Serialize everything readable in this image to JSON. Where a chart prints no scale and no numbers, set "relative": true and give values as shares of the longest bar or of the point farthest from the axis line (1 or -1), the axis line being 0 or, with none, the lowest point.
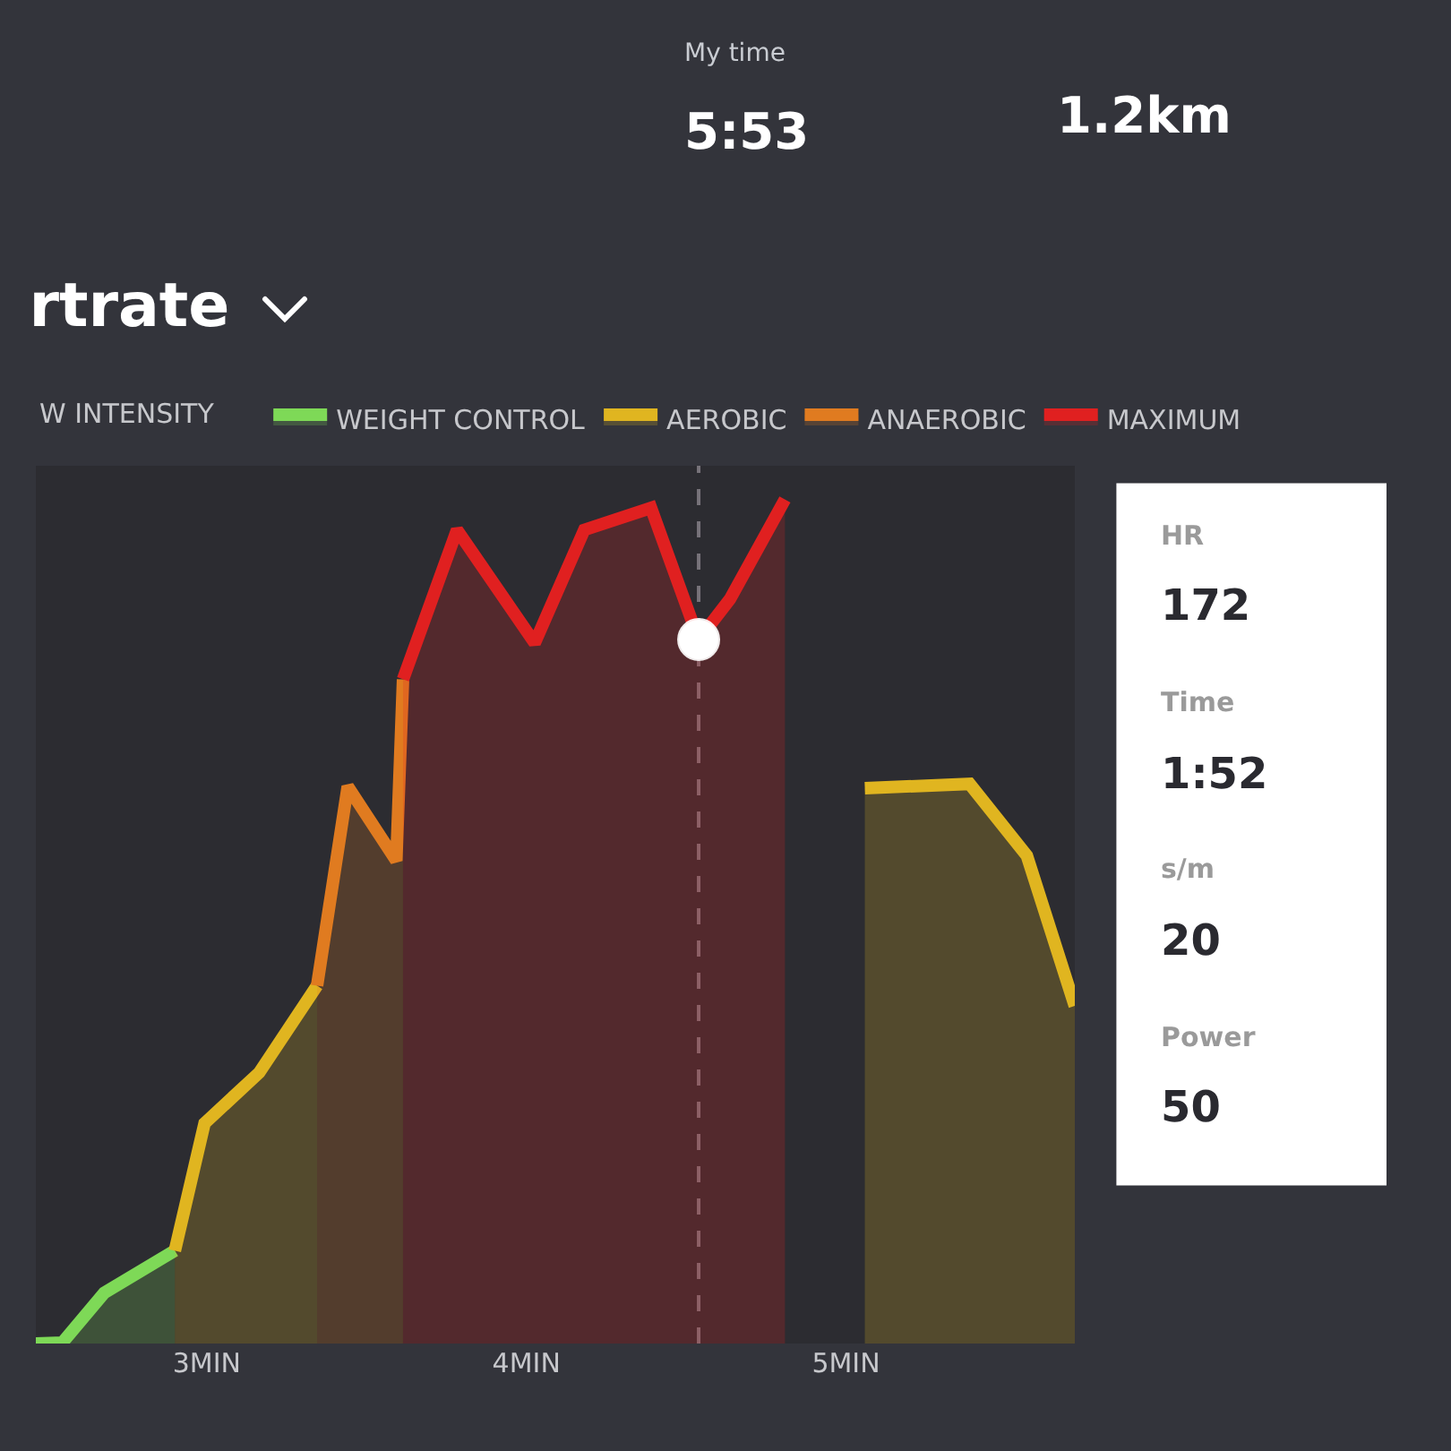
{
  "chart_data": {
    "type": "area",
    "title": "rtrate",
    "relative": true,
    "x": [
      2.465,
      2.548,
      2.679,
      2.9,
      2.993,
      3.164,
      3.345,
      3.441,
      3.593,
      3.614,
      3.783,
      4.026,
      4.181,
      4.39,
      4.539,
      4.637,
      4.809,
      5.059,
      5.387,
      5.566,
      5.716
    ],
    "series": [
      {
        "name": "WEIGHT CONTROL",
        "color": "#7ed957",
        "values": [
          0,
          0.001,
          0.06,
          0.11,
          null,
          null,
          null,
          null,
          null,
          null,
          null,
          null,
          null,
          null,
          null,
          null,
          null,
          null,
          null,
          null,
          null
        ]
      },
      {
        "name": "AEROBIC",
        "color": "#e0b520",
        "values": [
          null,
          null,
          null,
          0.11,
          0.261,
          0.321,
          0.424,
          null,
          null,
          null,
          null,
          null,
          null,
          null,
          null,
          null,
          null,
          null,
          null,
          null,
          null
        ]
      },
      {
        "color": "#e0b520",
        "values": [
          null,
          null,
          null,
          null,
          null,
          null,
          null,
          null,
          null,
          null,
          null,
          null,
          null,
          null,
          null,
          null,
          null,
          0.658,
          0.663,
          0.578,
          0.4
        ]
      },
      {
        "name": "ANAEROBIC",
        "color": "#e07b20",
        "values": [
          null,
          null,
          null,
          null,
          null,
          null,
          0.424,
          0.66,
          0.572,
          0.787,
          null,
          null,
          null,
          null,
          null,
          null,
          null,
          null,
          null,
          null,
          null
        ]
      },
      {
        "name": "MAXIMUM",
        "color": "#e02020",
        "values": [
          null,
          null,
          null,
          null,
          null,
          null,
          null,
          null,
          null,
          0.787,
          0.964,
          0.83,
          0.964,
          0.99,
          0.834,
          0.882,
          1,
          null,
          null,
          null,
          null
        ]
      },
      {
        "type": "scatter",
        "color": "#ffffff",
        "marker": "circle",
        "x": [
          4.539
        ],
        "values": [
          0.834
        ]
      }
    ],
    "xlim": [
      2.465,
      5.716
    ],
    "xticks": [
      {
        "value": 3,
        "label": "3MIN"
      },
      {
        "value": 4,
        "label": "4MIN"
      },
      {
        "value": 5,
        "label": "5MIN"
      }
    ],
    "ref_lines": [
      {
        "axis": "x",
        "value": 4.539,
        "color": "#77737a",
        "line_style": "dashed"
      }
    ],
    "legend": "top",
    "annotations": [
      "My time",
      "5:53",
      "1.2km",
      "W INTENSITY",
      "HR",
      "172",
      "Time",
      "1:52",
      "s/m",
      "20",
      "Power",
      "50"
    ]
  }
}
